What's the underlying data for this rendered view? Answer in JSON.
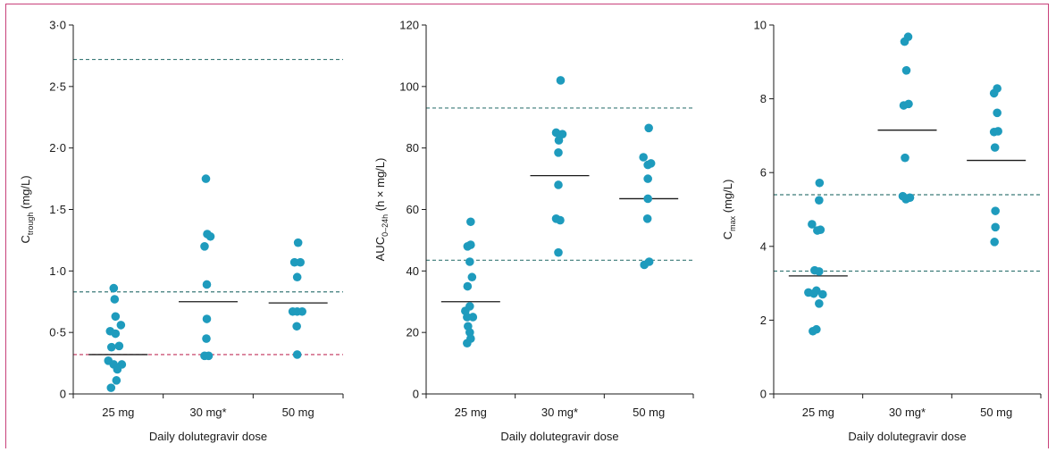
{
  "chart_data": [
    {
      "type": "scatter",
      "ylabel": {
        "base": "C",
        "sub": "trough",
        "rest": " (mg/L)"
      },
      "xlabel": "Daily dolutegravir dose",
      "categories": [
        "25 mg",
        "30 mg*",
        "50 mg"
      ],
      "ylim": [
        0,
        3.0
      ],
      "yticks": [
        0,
        0.5,
        1.0,
        1.5,
        2.0,
        2.5,
        3.0
      ],
      "yticklabels": [
        "0",
        "0·5",
        "1·0",
        "1·5",
        "2·0",
        "2·5",
        "3·0"
      ],
      "points": [
        [
          [
            -0.1,
            0.86
          ],
          [
            -0.08,
            0.77
          ],
          [
            0.06,
            0.56
          ],
          [
            -0.06,
            0.63
          ],
          [
            -0.18,
            0.51
          ],
          [
            -0.06,
            0.49
          ],
          [
            -0.15,
            0.38
          ],
          [
            0.02,
            0.39
          ],
          [
            -0.22,
            0.27
          ],
          [
            -0.1,
            0.24
          ],
          [
            0.08,
            0.24
          ],
          [
            -0.02,
            0.2
          ],
          [
            -0.04,
            0.11
          ],
          [
            -0.16,
            0.05
          ]
        ],
        [
          [
            -0.05,
            1.75
          ],
          [
            -0.02,
            1.3
          ],
          [
            0.05,
            1.28
          ],
          [
            -0.08,
            1.2
          ],
          [
            -0.03,
            0.89
          ],
          [
            -0.03,
            0.61
          ],
          [
            -0.04,
            0.45
          ],
          [
            -0.08,
            0.31
          ],
          [
            0.01,
            0.31
          ]
        ],
        [
          [
            0.0,
            1.23
          ],
          [
            -0.08,
            1.07
          ],
          [
            0.05,
            1.07
          ],
          [
            -0.02,
            0.95
          ],
          [
            -0.12,
            0.67
          ],
          [
            -0.02,
            0.67
          ],
          [
            0.09,
            0.67
          ],
          [
            -0.03,
            0.55
          ],
          [
            -0.02,
            0.32
          ]
        ]
      ],
      "medians": [
        0.32,
        0.75,
        0.74
      ],
      "reference_lines": [
        {
          "y": 2.72,
          "color": "#3a7a78"
        },
        {
          "y": 0.83,
          "color": "#3a7a78"
        },
        {
          "y": 0.32,
          "color": "#c2305a"
        }
      ]
    },
    {
      "type": "scatter",
      "ylabel": {
        "base": "AUC",
        "sub": "0–24h",
        "rest": " (h × mg/L)"
      },
      "xlabel": "Daily dolutegravir dose",
      "categories": [
        "25 mg",
        "30 mg*",
        "50 mg"
      ],
      "ylim": [
        0,
        120
      ],
      "yticks": [
        0,
        20,
        40,
        60,
        80,
        100,
        120
      ],
      "yticklabels": [
        "0",
        "20",
        "40",
        "60",
        "80",
        "100",
        "120"
      ],
      "points": [
        [
          [
            0.0,
            56
          ],
          [
            -0.07,
            48
          ],
          [
            0.0,
            48.5
          ],
          [
            -0.02,
            43
          ],
          [
            0.03,
            38
          ],
          [
            -0.07,
            35
          ],
          [
            -0.12,
            27
          ],
          [
            -0.02,
            28.5
          ],
          [
            -0.08,
            25
          ],
          [
            0.05,
            25
          ],
          [
            -0.06,
            22
          ],
          [
            -0.02,
            20
          ],
          [
            0.0,
            18
          ],
          [
            -0.08,
            16.5
          ]
        ],
        [
          [
            0.02,
            102
          ],
          [
            -0.08,
            85
          ],
          [
            0.06,
            84.5
          ],
          [
            -0.02,
            82.5
          ],
          [
            -0.03,
            78.5
          ],
          [
            -0.03,
            68
          ],
          [
            -0.08,
            57
          ],
          [
            0.01,
            56.5
          ],
          [
            -0.03,
            46
          ]
        ],
        [
          [
            0.0,
            86.5
          ],
          [
            -0.12,
            77
          ],
          [
            -0.02,
            74.5
          ],
          [
            0.05,
            75
          ],
          [
            -0.02,
            70
          ],
          [
            -0.02,
            63.5
          ],
          [
            -0.03,
            57
          ],
          [
            -0.1,
            42
          ],
          [
            0.01,
            43
          ]
        ]
      ],
      "medians": [
        30,
        71,
        63.5
      ],
      "reference_lines": [
        {
          "y": 93,
          "color": "#3a7a78"
        },
        {
          "y": 43.5,
          "color": "#3a7a78"
        }
      ]
    },
    {
      "type": "scatter",
      "ylabel": {
        "base": "C",
        "sub": "max",
        "rest": " (mg/L)"
      },
      "xlabel": "Daily dolutegravir dose",
      "categories": [
        "25 mg",
        "30 mg*",
        "50 mg"
      ],
      "ylim": [
        0,
        10
      ],
      "yticks": [
        0,
        2,
        4,
        6,
        8,
        10
      ],
      "yticklabels": [
        "0",
        "2",
        "4",
        "6",
        "8",
        "10"
      ],
      "points": [
        [
          [
            0.03,
            5.72
          ],
          [
            0.02,
            5.25
          ],
          [
            -0.14,
            4.6
          ],
          [
            -0.02,
            4.43
          ],
          [
            0.05,
            4.45
          ],
          [
            -0.08,
            3.35
          ],
          [
            0.02,
            3.32
          ],
          [
            -0.22,
            2.75
          ],
          [
            -0.1,
            2.72
          ],
          [
            -0.04,
            2.8
          ],
          [
            0.1,
            2.7
          ],
          [
            0.02,
            2.45
          ],
          [
            -0.12,
            1.7
          ],
          [
            -0.04,
            1.75
          ]
        ],
        [
          [
            0.02,
            9.68
          ],
          [
            -0.06,
            9.55
          ],
          [
            -0.02,
            8.77
          ],
          [
            -0.08,
            7.82
          ],
          [
            0.03,
            7.86
          ],
          [
            -0.05,
            6.4
          ],
          [
            -0.1,
            5.36
          ],
          [
            -0.03,
            5.28
          ],
          [
            0.06,
            5.32
          ]
        ],
        [
          [
            0.02,
            8.28
          ],
          [
            -0.05,
            8.15
          ],
          [
            0.02,
            7.62
          ],
          [
            -0.05,
            7.1
          ],
          [
            0.04,
            7.12
          ],
          [
            -0.03,
            6.68
          ],
          [
            -0.02,
            4.96
          ],
          [
            -0.02,
            4.52
          ],
          [
            -0.04,
            4.12
          ]
        ]
      ],
      "medians": [
        3.2,
        7.15,
        6.33
      ],
      "reference_lines": [
        {
          "y": 5.4,
          "color": "#3a7a78"
        },
        {
          "y": 3.33,
          "color": "#3a7a78"
        }
      ]
    }
  ],
  "style": {
    "point_color": "#1e9bbd",
    "axis_color": "#1a1a1a",
    "frame_color": "#c8417a"
  }
}
